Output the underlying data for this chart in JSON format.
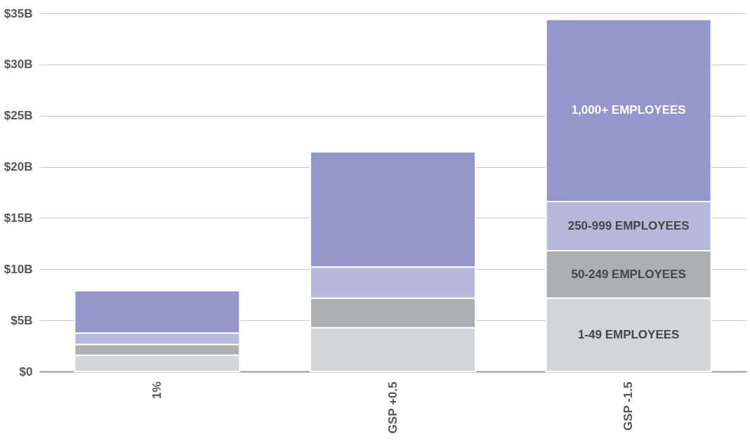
{
  "chart_data": {
    "type": "bar",
    "stacked": true,
    "categories": [
      "1%",
      "GSP +0.5",
      "GSP -1.5"
    ],
    "series": [
      {
        "name": "1-49 EMPLOYEES",
        "color": "#d4d5d8",
        "values": [
          1.6,
          4.27,
          7.17
        ]
      },
      {
        "name": "50-249 EMPLOYEES",
        "color": "#aeafb2",
        "values": [
          1.05,
          2.9,
          4.63
        ]
      },
      {
        "name": "250-999 EMPLOYEES",
        "color": "#b6b9db",
        "values": [
          1.1,
          3.03,
          4.8
        ]
      },
      {
        "name": "1,000+ EMPLOYEES",
        "color": "#9497cc",
        "values": [
          4.15,
          11.26,
          17.8
        ]
      }
    ],
    "ylim": [
      0,
      35
    ],
    "yticks": [
      {
        "value": 0,
        "label": "$0"
      },
      {
        "value": 5,
        "label": "$5B"
      },
      {
        "value": 10,
        "label": "$10B"
      },
      {
        "value": 15,
        "label": "$15B"
      },
      {
        "value": 20,
        "label": "$20B"
      },
      {
        "value": 25,
        "label": "$25B"
      },
      {
        "value": 30,
        "label": "$30B"
      },
      {
        "value": 35,
        "label": "$35B"
      }
    ],
    "grid": "y",
    "legend": false
  }
}
